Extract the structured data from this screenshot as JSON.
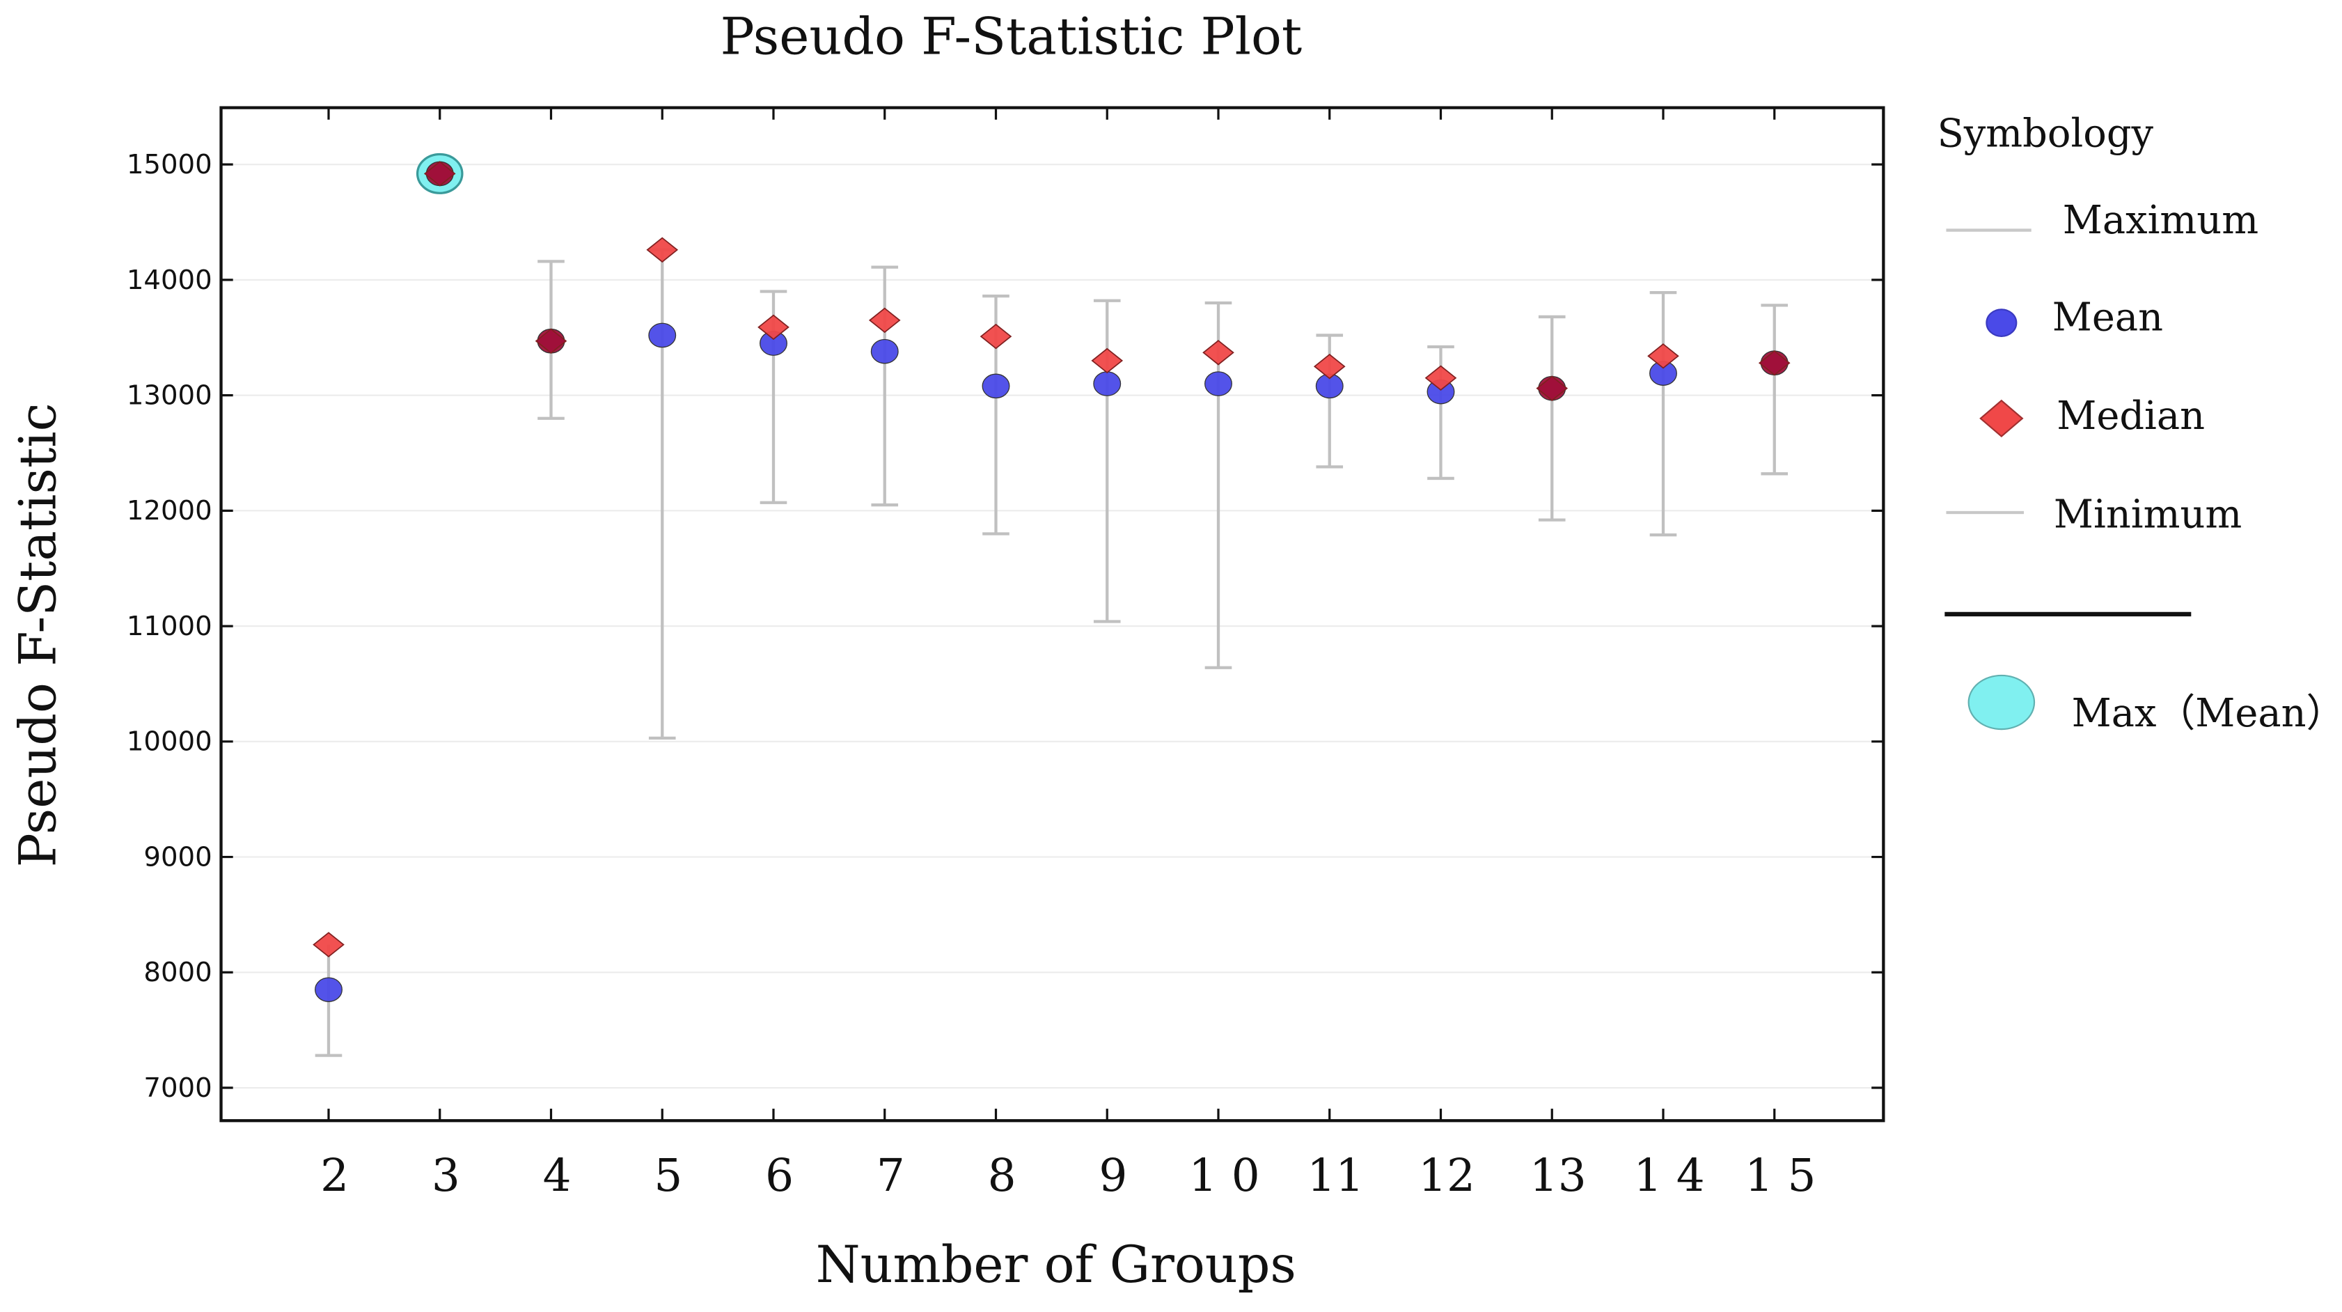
{
  "chart_data": {
    "type": "scatter",
    "title": "Pseudo F-Statistic Plot",
    "xlabel": "Number of Groups",
    "ylabel": "Pseudo F-Statistic",
    "x": [
      2,
      3,
      4,
      5,
      6,
      7,
      8,
      9,
      10,
      11,
      12,
      13,
      14,
      15
    ],
    "x_tick_labels": [
      "2",
      "3",
      "4",
      "5",
      "6",
      "7",
      "8",
      "9",
      "1 0",
      "11",
      "12",
      "13",
      "1 4",
      "1 5"
    ],
    "y_ticks": [
      7000,
      8000,
      9000,
      10000,
      11000,
      12000,
      13000,
      14000,
      15000
    ],
    "ylim": [
      6500,
      15500
    ],
    "grid": true,
    "series": [
      {
        "name": "Maximum",
        "values": [
          8240,
          14920,
          14160,
          14260,
          13900,
          14110,
          13860,
          13820,
          13800,
          13520,
          13420,
          13680,
          13890,
          13780
        ]
      },
      {
        "name": "Mean",
        "values": [
          7850,
          14920,
          13470,
          13520,
          13450,
          13380,
          13080,
          13100,
          13100,
          13080,
          13030,
          13060,
          13190,
          13280
        ]
      },
      {
        "name": "Median",
        "values": [
          8240,
          14920,
          13470,
          14260,
          13590,
          13650,
          13510,
          13300,
          13370,
          13250,
          13150,
          13060,
          13340,
          13280
        ]
      },
      {
        "name": "Minimum",
        "values": [
          7280,
          14920,
          12800,
          10030,
          12070,
          12050,
          11800,
          11040,
          10640,
          12380,
          12280,
          11920,
          11790,
          12320
        ]
      }
    ],
    "highlight": {
      "name": "Max（Mean）",
      "x": 3,
      "y": 14920
    },
    "legend": {
      "title": "Symbology",
      "placement": "right",
      "items": [
        "Maximum",
        "Mean",
        "Median",
        "Minimum",
        "Max（Mean）"
      ]
    },
    "colors": {
      "mean": "#4a4ae8",
      "median": "#f04848",
      "range": "#c0c0c0",
      "highlight": "#80f0f0",
      "overlap": "#a0103a"
    }
  }
}
